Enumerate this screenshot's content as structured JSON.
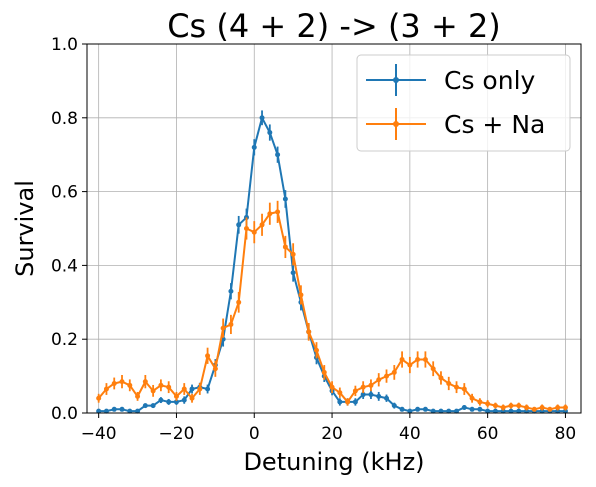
{
  "chart_data": {
    "type": "line",
    "title": "Cs (4 + 2) -> (3 + 2)",
    "xlabel": "Detuning (kHz)",
    "ylabel": "Survival",
    "xlim": [
      -43,
      84
    ],
    "ylim": [
      0,
      1.0
    ],
    "xticks": [
      -40,
      -20,
      0,
      20,
      40,
      60,
      80
    ],
    "yticks": [
      0.0,
      0.2,
      0.4,
      0.6,
      0.8,
      1.0
    ],
    "xtick_labels": [
      "−40",
      "−20",
      "0",
      "20",
      "40",
      "60",
      "80"
    ],
    "ytick_labels": [
      "0.0",
      "0.2",
      "0.4",
      "0.6",
      "0.8",
      "1.0"
    ],
    "grid": true,
    "legend_position": "top-right",
    "series": [
      {
        "name": "Cs only",
        "color": "#1f77b4",
        "points": [
          [
            -40,
            0.005,
            0.005
          ],
          [
            -38,
            0.005,
            0.005
          ],
          [
            -36,
            0.01,
            0.005
          ],
          [
            -34,
            0.01,
            0.005
          ],
          [
            -32,
            0.005,
            0.005
          ],
          [
            -30,
            0.005,
            0.005
          ],
          [
            -28,
            0.02,
            0.006
          ],
          [
            -26,
            0.02,
            0.006
          ],
          [
            -24,
            0.035,
            0.008
          ],
          [
            -22,
            0.03,
            0.008
          ],
          [
            -20,
            0.03,
            0.008
          ],
          [
            -18,
            0.035,
            0.01
          ],
          [
            -16,
            0.065,
            0.012
          ],
          [
            -14,
            0.07,
            0.012
          ],
          [
            -12,
            0.065,
            0.012
          ],
          [
            -10,
            0.13,
            0.016
          ],
          [
            -8,
            0.2,
            0.02
          ],
          [
            -6,
            0.33,
            0.022
          ],
          [
            -4,
            0.51,
            0.024
          ],
          [
            -2,
            0.53,
            0.024
          ],
          [
            0,
            0.72,
            0.022
          ],
          [
            2,
            0.8,
            0.02
          ],
          [
            4,
            0.76,
            0.022
          ],
          [
            6,
            0.7,
            0.022
          ],
          [
            8,
            0.58,
            0.024
          ],
          [
            10,
            0.38,
            0.024
          ],
          [
            12,
            0.3,
            0.022
          ],
          [
            14,
            0.22,
            0.02
          ],
          [
            16,
            0.15,
            0.018
          ],
          [
            18,
            0.1,
            0.016
          ],
          [
            20,
            0.06,
            0.012
          ],
          [
            22,
            0.03,
            0.01
          ],
          [
            24,
            0.03,
            0.01
          ],
          [
            26,
            0.03,
            0.01
          ],
          [
            28,
            0.05,
            0.012
          ],
          [
            30,
            0.05,
            0.012
          ],
          [
            32,
            0.045,
            0.012
          ],
          [
            34,
            0.04,
            0.01
          ],
          [
            36,
            0.02,
            0.008
          ],
          [
            38,
            0.01,
            0.006
          ],
          [
            40,
            0.005,
            0.005
          ],
          [
            42,
            0.01,
            0.005
          ],
          [
            44,
            0.01,
            0.005
          ],
          [
            46,
            0.005,
            0.005
          ],
          [
            48,
            0.005,
            0.005
          ],
          [
            50,
            0.005,
            0.005
          ],
          [
            52,
            0.005,
            0.005
          ],
          [
            54,
            0.015,
            0.006
          ],
          [
            56,
            0.01,
            0.005
          ],
          [
            58,
            0.01,
            0.005
          ],
          [
            60,
            0.005,
            0.005
          ],
          [
            62,
            0.005,
            0.005
          ],
          [
            64,
            0.005,
            0.005
          ],
          [
            66,
            0.005,
            0.005
          ],
          [
            68,
            0.005,
            0.005
          ],
          [
            70,
            0.005,
            0.005
          ],
          [
            72,
            0.005,
            0.005
          ],
          [
            74,
            0.005,
            0.005
          ],
          [
            76,
            0.005,
            0.005
          ],
          [
            78,
            0.005,
            0.005
          ],
          [
            80,
            0.005,
            0.005
          ]
        ]
      },
      {
        "name": "Cs + Na",
        "color": "#ff7f0e",
        "points": [
          [
            -40,
            0.04,
            0.012
          ],
          [
            -38,
            0.065,
            0.016
          ],
          [
            -36,
            0.08,
            0.016
          ],
          [
            -34,
            0.085,
            0.018
          ],
          [
            -32,
            0.075,
            0.016
          ],
          [
            -30,
            0.045,
            0.012
          ],
          [
            -28,
            0.085,
            0.018
          ],
          [
            -26,
            0.06,
            0.016
          ],
          [
            -24,
            0.075,
            0.016
          ],
          [
            -22,
            0.07,
            0.016
          ],
          [
            -20,
            0.045,
            0.012
          ],
          [
            -18,
            0.065,
            0.016
          ],
          [
            -16,
            0.04,
            0.012
          ],
          [
            -14,
            0.065,
            0.016
          ],
          [
            -12,
            0.155,
            0.022
          ],
          [
            -10,
            0.12,
            0.022
          ],
          [
            -8,
            0.23,
            0.026
          ],
          [
            -6,
            0.24,
            0.026
          ],
          [
            -4,
            0.3,
            0.028
          ],
          [
            -2,
            0.5,
            0.03
          ],
          [
            0,
            0.49,
            0.03
          ],
          [
            2,
            0.51,
            0.03
          ],
          [
            4,
            0.54,
            0.03
          ],
          [
            6,
            0.545,
            0.03
          ],
          [
            8,
            0.45,
            0.03
          ],
          [
            10,
            0.43,
            0.03
          ],
          [
            12,
            0.32,
            0.026
          ],
          [
            14,
            0.22,
            0.024
          ],
          [
            16,
            0.17,
            0.022
          ],
          [
            18,
            0.11,
            0.02
          ],
          [
            20,
            0.07,
            0.016
          ],
          [
            22,
            0.055,
            0.014
          ],
          [
            24,
            0.03,
            0.01
          ],
          [
            26,
            0.06,
            0.014
          ],
          [
            28,
            0.07,
            0.016
          ],
          [
            30,
            0.075,
            0.016
          ],
          [
            32,
            0.09,
            0.018
          ],
          [
            34,
            0.1,
            0.018
          ],
          [
            36,
            0.11,
            0.02
          ],
          [
            38,
            0.145,
            0.022
          ],
          [
            40,
            0.13,
            0.022
          ],
          [
            42,
            0.145,
            0.022
          ],
          [
            44,
            0.145,
            0.022
          ],
          [
            46,
            0.12,
            0.02
          ],
          [
            48,
            0.095,
            0.018
          ],
          [
            50,
            0.08,
            0.018
          ],
          [
            52,
            0.07,
            0.016
          ],
          [
            54,
            0.065,
            0.016
          ],
          [
            56,
            0.04,
            0.012
          ],
          [
            58,
            0.03,
            0.01
          ],
          [
            60,
            0.025,
            0.01
          ],
          [
            62,
            0.02,
            0.008
          ],
          [
            64,
            0.015,
            0.008
          ],
          [
            66,
            0.02,
            0.008
          ],
          [
            68,
            0.02,
            0.008
          ],
          [
            70,
            0.015,
            0.008
          ],
          [
            72,
            0.01,
            0.006
          ],
          [
            74,
            0.015,
            0.008
          ],
          [
            76,
            0.01,
            0.006
          ],
          [
            78,
            0.015,
            0.008
          ],
          [
            80,
            0.015,
            0.008
          ]
        ]
      }
    ]
  }
}
